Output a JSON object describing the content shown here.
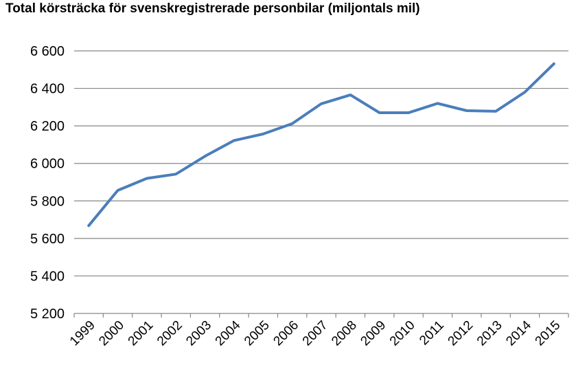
{
  "chart_data": {
    "type": "line",
    "title": "Total körsträcka för svenskregistrerade personbilar (miljontals mil)",
    "xlabel": "",
    "ylabel": "",
    "categories": [
      "1999",
      "2000",
      "2001",
      "2002",
      "2003",
      "2004",
      "2005",
      "2006",
      "2007",
      "2008",
      "2009",
      "2010",
      "2011",
      "2012",
      "2013",
      "2014",
      "2015"
    ],
    "series": [
      {
        "values": [
          5668,
          5856,
          5920,
          5943,
          6038,
          6122,
          6157,
          6212,
          6318,
          6365,
          6270,
          6270,
          6320,
          6281,
          6278,
          6380,
          6531
        ]
      }
    ],
    "ylim": [
      5200,
      6600
    ],
    "yticks": [
      5200,
      5400,
      5600,
      5800,
      6000,
      6200,
      6400,
      6600
    ],
    "ytick_labels": [
      "5 200",
      "5 400",
      "5 600",
      "5 800",
      "6 000",
      "6 200",
      "6 400",
      "6 600"
    ],
    "grid": true,
    "line_color": "#4a7ebb"
  }
}
